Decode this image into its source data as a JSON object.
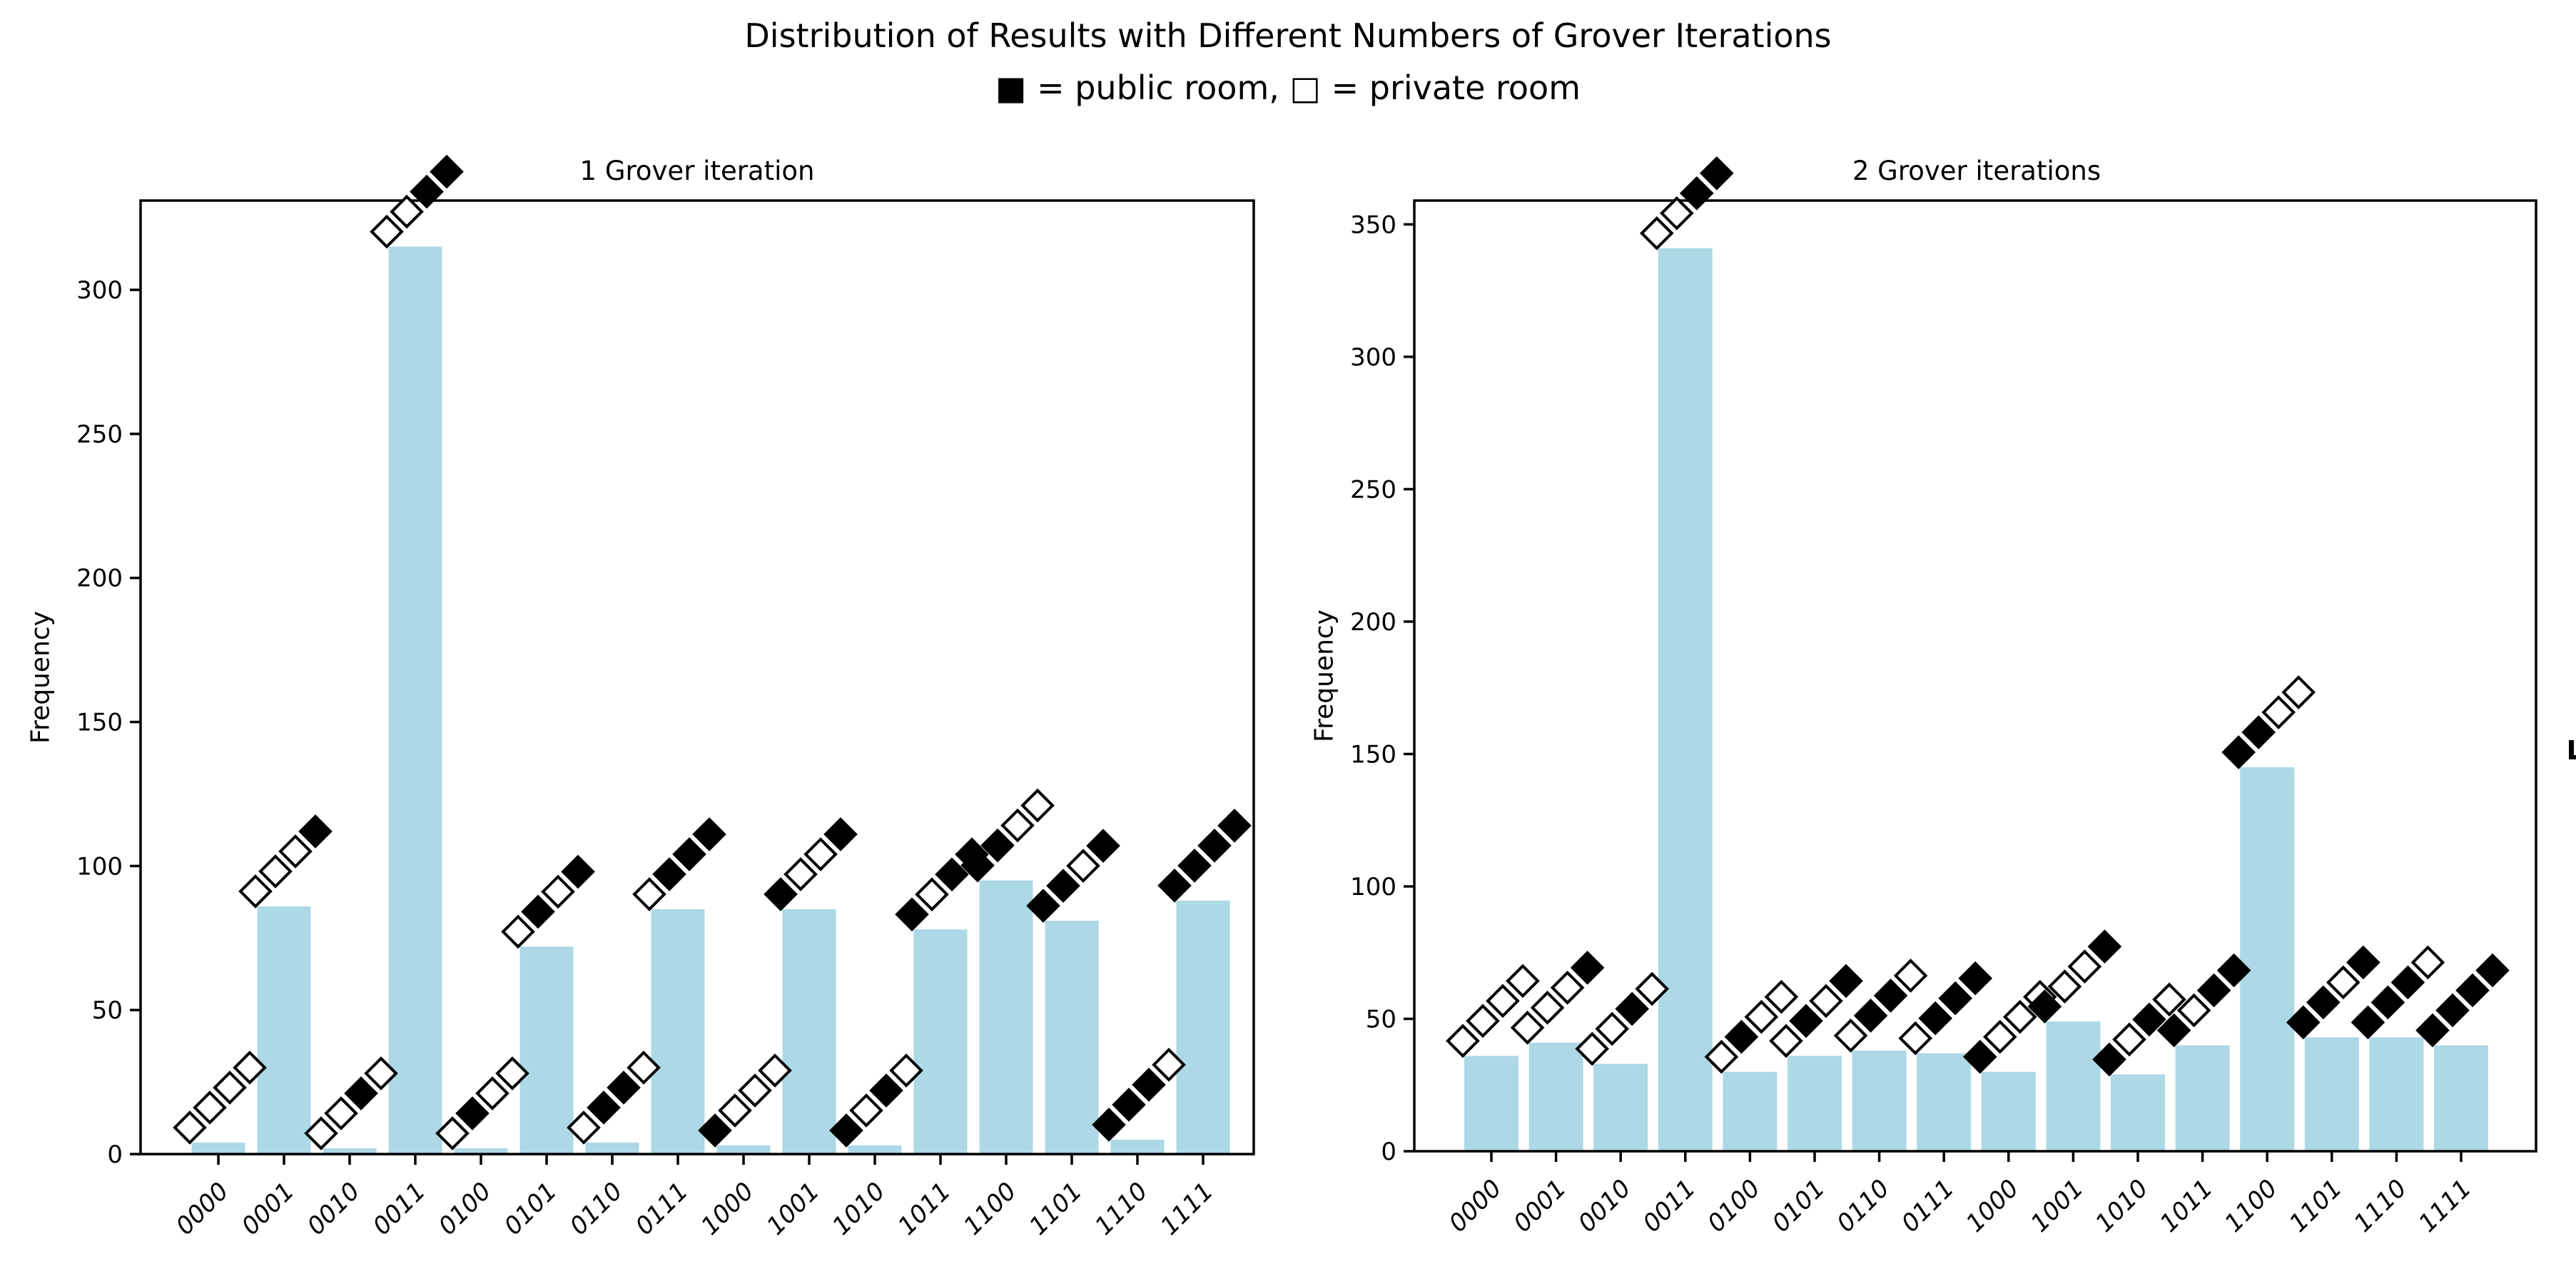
{
  "figure": {
    "suptitle_line1": "Distribution of Results with Different Numbers of Grover Iterations",
    "suptitle_line2": "■ = public room, □ = private room",
    "legend": {
      "filled_symbol": "■",
      "filled_meaning": "public room",
      "open_symbol": "□",
      "open_meaning": "private room"
    },
    "colors": {
      "background": "#FFFFFF",
      "bar": "#ADD8E6",
      "axis": "#000000",
      "marker_filled": "#000000",
      "marker_open": "#FFFFFF",
      "text": "#000000"
    }
  },
  "chart_data": [
    {
      "type": "bar",
      "title": "1 Grover iteration",
      "ylabel": "Frequency",
      "xlabel": "",
      "grid": false,
      "legend_position": "none",
      "categories": [
        "0000",
        "0001",
        "0010",
        "0011",
        "0100",
        "0101",
        "0110",
        "0111",
        "1000",
        "1001",
        "1010",
        "1011",
        "1100",
        "1101",
        "1110",
        "1111"
      ],
      "values": [
        4,
        86,
        2,
        315,
        2,
        72,
        4,
        85,
        3,
        85,
        3,
        78,
        95,
        81,
        5,
        88
      ],
      "yticks": [
        0,
        50,
        100,
        150,
        200,
        250,
        300
      ],
      "ylim": [
        0,
        331
      ],
      "bar_color": "#ADD8E6",
      "marker_encoding": "each bar is topped by its 4-bit string drawn as a rising diagonal of diamonds; bit 1 = filled black diamond (public room), bit 0 = open white diamond (private room), first bit at bottom-left"
    },
    {
      "type": "bar",
      "title": "2 Grover iterations",
      "ylabel": "Frequency",
      "xlabel": "",
      "grid": false,
      "legend_position": "none",
      "categories": [
        "0000",
        "0001",
        "0010",
        "0011",
        "0100",
        "0101",
        "0110",
        "0111",
        "1000",
        "1001",
        "1010",
        "1011",
        "1100",
        "1101",
        "1110",
        "1111"
      ],
      "values": [
        36,
        41,
        33,
        341,
        30,
        36,
        38,
        37,
        30,
        49,
        29,
        40,
        145,
        43,
        43,
        40
      ],
      "yticks": [
        0,
        50,
        100,
        150,
        200,
        250,
        300,
        350
      ],
      "ylim": [
        0,
        359
      ],
      "bar_color": "#ADD8E6",
      "marker_encoding": "each bar is topped by its 4-bit string drawn as a rising diagonal of diamonds; bit 1 = filled black diamond (public room), bit 0 = open white diamond (private room), first bit at bottom-left"
    }
  ]
}
